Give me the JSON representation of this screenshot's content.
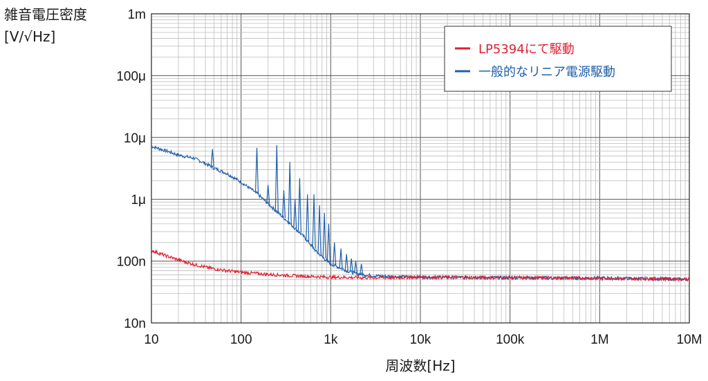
{
  "chart_data": {
    "type": "line",
    "title": "",
    "ylabel_line1": "雑音電圧密度",
    "ylabel_line2": "[V/√Hz]",
    "xlabel": "周波数[Hz]",
    "x_scale": "log",
    "y_scale": "log",
    "xlim": [
      10,
      10000000
    ],
    "ylim": [
      1e-08,
      0.001
    ],
    "grid": true,
    "legend_position": "top-right",
    "x_ticks": [
      {
        "value": 10,
        "label": "10"
      },
      {
        "value": 100,
        "label": "100"
      },
      {
        "value": 1000,
        "label": "1k"
      },
      {
        "value": 10000,
        "label": "10k"
      },
      {
        "value": 100000,
        "label": "100k"
      },
      {
        "value": 1000000,
        "label": "1M"
      },
      {
        "value": 10000000,
        "label": "10M"
      }
    ],
    "y_ticks": [
      {
        "value": 0.001,
        "label": "1m"
      },
      {
        "value": 0.0001,
        "label": "100μ"
      },
      {
        "value": 1e-05,
        "label": "10μ"
      },
      {
        "value": 1e-06,
        "label": "1μ"
      },
      {
        "value": 1e-07,
        "label": "100n"
      },
      {
        "value": 1e-08,
        "label": "10n"
      }
    ],
    "series": [
      {
        "name": "LP5394にて駆動",
        "color": "#e02030",
        "points": [
          [
            10,
            1.5e-07
          ],
          [
            12,
            1.35e-07
          ],
          [
            15,
            1.2e-07
          ],
          [
            20,
            1.05e-07
          ],
          [
            25,
            9.5e-08
          ],
          [
            30,
            8.8e-08
          ],
          [
            40,
            8e-08
          ],
          [
            50,
            7.5e-08
          ],
          [
            70,
            7e-08
          ],
          [
            100,
            6.6e-08
          ],
          [
            150,
            6.3e-08
          ],
          [
            200,
            6.1e-08
          ],
          [
            300,
            5.9e-08
          ],
          [
            500,
            5.7e-08
          ],
          [
            700,
            5.6e-08
          ],
          [
            1000,
            5.5e-08
          ],
          [
            2000,
            5.4e-08
          ],
          [
            5000,
            5.4e-08
          ],
          [
            10000,
            5.5e-08
          ],
          [
            100000,
            5.4e-08
          ],
          [
            1000000,
            5.3e-08
          ],
          [
            10000000,
            5.1e-08
          ]
        ]
      },
      {
        "name": "一般的なリニア電源駆動",
        "color": "#1f5fa8",
        "points": [
          [
            10,
            7.2e-06
          ],
          [
            15,
            6e-06
          ],
          [
            20,
            5.2e-06
          ],
          [
            30,
            4.6e-06
          ],
          [
            40,
            3.8e-06
          ],
          [
            50,
            3.2e-06
          ],
          [
            70,
            2.6e-06
          ],
          [
            100,
            1.9e-06
          ],
          [
            150,
            1.25e-06
          ],
          [
            200,
            8.5e-07
          ],
          [
            300,
            5e-07
          ],
          [
            500,
            2.5e-07
          ],
          [
            700,
            1.4e-07
          ],
          [
            1000,
            9e-08
          ],
          [
            1500,
            7e-08
          ],
          [
            2000,
            6.2e-08
          ],
          [
            3000,
            5.8e-08
          ],
          [
            5000,
            5.6e-08
          ],
          [
            10000,
            5.5e-08
          ],
          [
            100000,
            5.4e-08
          ],
          [
            1000000,
            5.3e-08
          ],
          [
            10000000,
            5.1e-08
          ]
        ],
        "spikes": [
          [
            48,
            6.5e-06
          ],
          [
            150,
            6.8e-06
          ],
          [
            200,
            1.7e-06
          ],
          [
            250,
            7.5e-06
          ],
          [
            300,
            1.4e-06
          ],
          [
            350,
            4e-06
          ],
          [
            400,
            1e-06
          ],
          [
            450,
            2.2e-06
          ],
          [
            550,
            1.2e-06
          ],
          [
            650,
            1.2e-06
          ],
          [
            750,
            8e-07
          ],
          [
            850,
            6e-07
          ],
          [
            950,
            4e-07
          ],
          [
            1100,
            2e-07
          ],
          [
            1300,
            1.6e-07
          ],
          [
            1500,
            1.3e-07
          ],
          [
            1700,
            1.1e-07
          ],
          [
            1900,
            1e-07
          ],
          [
            2200,
            9e-08
          ]
        ]
      }
    ]
  }
}
